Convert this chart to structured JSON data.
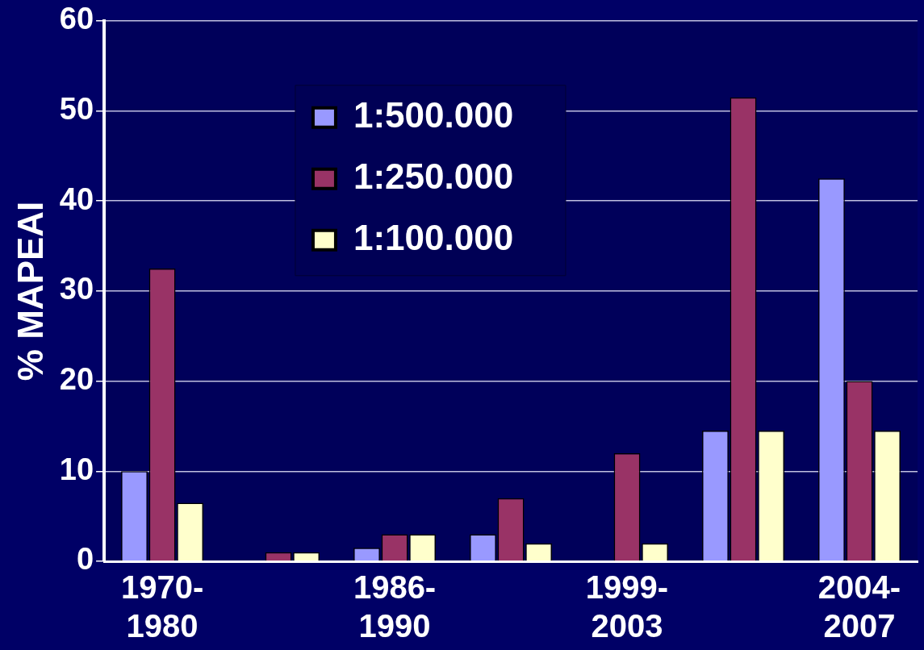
{
  "chart_data": {
    "type": "bar",
    "ylabel": "% MAPEAI",
    "categories": [
      "1970-1980",
      null,
      "1986-1990",
      null,
      "1999-2003",
      null,
      "2004-2007"
    ],
    "series": [
      {
        "name": "1:500.000",
        "color": "#9999ff",
        "values": [
          10,
          0,
          1.5,
          3,
          0,
          14.5,
          42.5
        ]
      },
      {
        "name": "1:250.000",
        "color": "#993366",
        "values": [
          32.5,
          1,
          3,
          7,
          12,
          51.5,
          20
        ]
      },
      {
        "name": "1:100.000",
        "color": "#ffffcc",
        "values": [
          6.5,
          1,
          3,
          2,
          2,
          14.5,
          14.5
        ]
      }
    ],
    "ylim": [
      0,
      60
    ],
    "yticks": [
      0,
      10,
      20,
      30,
      40,
      50,
      60
    ],
    "grid": "y",
    "legend": "top"
  }
}
